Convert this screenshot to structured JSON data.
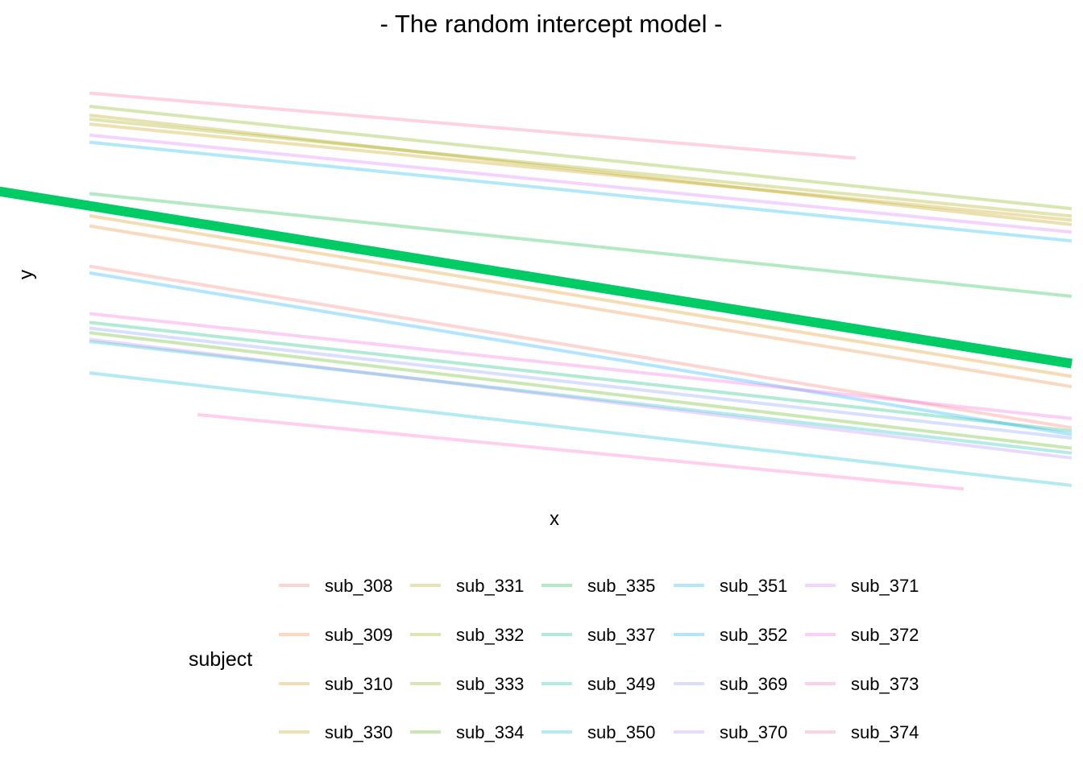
{
  "chart_data": {
    "type": "line",
    "title": "- The random intercept model -",
    "xlabel": "x",
    "ylabel": "y",
    "xlim": [
      0,
      21
    ],
    "ylim": [
      0,
      10
    ],
    "grid": false,
    "legend": {
      "title": "subject",
      "placement": "bottom",
      "columns": 5
    },
    "fixed_effect": {
      "color": "#00CC66",
      "x": [
        -1,
        21
      ],
      "y": [
        6.8,
        2.88
      ]
    },
    "series": [
      {
        "name": "sub_308",
        "color": "#F8766D",
        "x": [
          1,
          21
        ],
        "y": [
          5.08,
          1.43
        ]
      },
      {
        "name": "sub_309",
        "color": "#EA8331",
        "x": [
          1,
          21
        ],
        "y": [
          5.99,
          2.36
        ]
      },
      {
        "name": "sub_310",
        "color": "#DB8E00",
        "x": [
          1,
          21
        ],
        "y": [
          6.22,
          2.59
        ]
      },
      {
        "name": "sub_330",
        "color": "#C99800",
        "x": [
          1,
          21
        ],
        "y": [
          8.29,
          6.12
        ]
      },
      {
        "name": "sub_331",
        "color": "#B3A000",
        "x": [
          1,
          21
        ],
        "y": [
          8.49,
          6.02
        ]
      },
      {
        "name": "sub_332",
        "color": "#9AA800",
        "x": [
          1,
          21
        ],
        "y": [
          8.4,
          6.21
        ]
      },
      {
        "name": "sub_333",
        "color": "#7CAE00",
        "x": [
          1,
          21
        ],
        "y": [
          8.69,
          6.38
        ]
      },
      {
        "name": "sub_334",
        "color": "#53B400",
        "x": [
          1,
          21
        ],
        "y": [
          3.58,
          0.97
        ]
      },
      {
        "name": "sub_335",
        "color": "#00BA38",
        "x": [
          1,
          21
        ],
        "y": [
          6.72,
          4.4
        ]
      },
      {
        "name": "sub_337",
        "color": "#00BE75",
        "x": [
          1,
          21
        ],
        "y": [
          3.81,
          1.36
        ]
      },
      {
        "name": "sub_349",
        "color": "#00C0AF",
        "x": [
          1,
          21
        ],
        "y": [
          3.38,
          0.86
        ]
      },
      {
        "name": "sub_350",
        "color": "#00BCD8",
        "x": [
          1,
          21
        ],
        "y": [
          2.67,
          0.13
        ]
      },
      {
        "name": "sub_351",
        "color": "#00B5EE",
        "x": [
          1,
          21
        ],
        "y": [
          7.88,
          5.65
        ]
      },
      {
        "name": "sub_352",
        "color": "#00A8FF",
        "x": [
          1,
          21
        ],
        "y": [
          4.93,
          1.28
        ]
      },
      {
        "name": "sub_369",
        "color": "#7F96FF",
        "x": [
          1,
          21
        ],
        "y": [
          3.68,
          1.2
        ]
      },
      {
        "name": "sub_370",
        "color": "#B385FF",
        "x": [
          1,
          21
        ],
        "y": [
          3.43,
          0.75
        ]
      },
      {
        "name": "sub_371",
        "color": "#DB72FB",
        "x": [
          1,
          21
        ],
        "y": [
          8.04,
          5.85
        ]
      },
      {
        "name": "sub_372",
        "color": "#F464E2",
        "x": [
          1,
          21
        ],
        "y": [
          4.01,
          1.64
        ]
      },
      {
        "name": "sub_373",
        "color": "#FF61C3",
        "x": [
          3.2,
          18.8
        ],
        "y": [
          1.73,
          0.05
        ]
      },
      {
        "name": "sub_374",
        "color": "#FF6B96",
        "x": [
          1,
          16.6
        ],
        "y": [
          8.99,
          7.52
        ]
      }
    ]
  }
}
